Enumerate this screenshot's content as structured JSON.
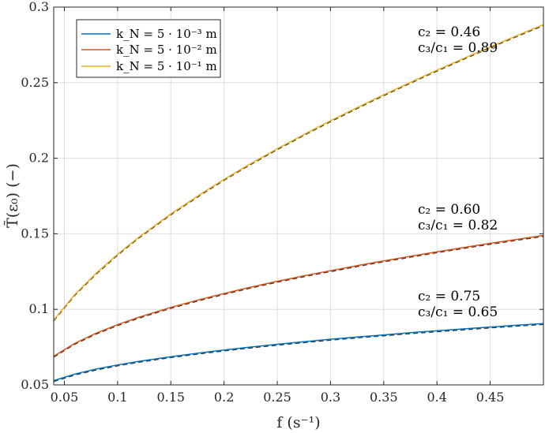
{
  "chart_data": {
    "type": "line",
    "xlabel": "f (s⁻¹)",
    "ylabel": "T̃(ε₀) (−)",
    "xlim": [
      0.04,
      0.5
    ],
    "ylim": [
      0.05,
      0.3
    ],
    "xticks": [
      0.05,
      0.1,
      0.15,
      0.2,
      0.25,
      0.3,
      0.35,
      0.4,
      0.45
    ],
    "xtick_labels": [
      "0.05",
      "0.1",
      "0.15",
      "0.2",
      "0.25",
      "0.3",
      "0.35",
      "0.4",
      "0.45"
    ],
    "yticks": [
      0.05,
      0.1,
      0.15,
      0.2,
      0.25,
      0.3
    ],
    "ytick_labels": [
      "0.05",
      "0.1",
      "0.15",
      "0.2",
      "0.25",
      "0.3"
    ],
    "grid": true,
    "legend_position": "top-left",
    "x": [
      0.04,
      0.06,
      0.08,
      0.1,
      0.12,
      0.15,
      0.18,
      0.2,
      0.22,
      0.25,
      0.28,
      0.3,
      0.33,
      0.35,
      0.38,
      0.4,
      0.43,
      0.45,
      0.48,
      0.5
    ],
    "series": [
      {
        "name": "k_N = 5 · 10⁻³ m",
        "color": "#0072BD",
        "values": [
          0.0528,
          0.0572,
          0.0605,
          0.0632,
          0.0656,
          0.0687,
          0.0714,
          0.0731,
          0.0747,
          0.0769,
          0.0789,
          0.0802,
          0.082,
          0.0831,
          0.0848,
          0.0858,
          0.0873,
          0.0883,
          0.0897,
          0.0906
        ],
        "dashed": true,
        "annotation": {
          "c2": "c₂ = 0.75",
          "c3c1": "c₃/c₁ = 0.65"
        }
      },
      {
        "name": "k_N = 5 · 10⁻² m",
        "color": "#D95319",
        "values": [
          0.069,
          0.0776,
          0.0843,
          0.0899,
          0.0948,
          0.1013,
          0.107,
          0.1105,
          0.1139,
          0.1186,
          0.1229,
          0.1256,
          0.1296,
          0.1321,
          0.1357,
          0.1381,
          0.1415,
          0.1437,
          0.1468,
          0.1489
        ],
        "dashed": true,
        "annotation": {
          "c2": "c₂ = 0.60",
          "c3c1": "c₃/c₁ = 0.82"
        }
      },
      {
        "name": "k_N = 5 · 10⁻¹ m",
        "color": "#EDB120",
        "values": [
          0.093,
          0.11,
          0.124,
          0.1365,
          0.1478,
          0.1632,
          0.1772,
          0.186,
          0.1944,
          0.2063,
          0.2176,
          0.2248,
          0.2353,
          0.242,
          0.2519,
          0.2583,
          0.2676,
          0.2737,
          0.2826,
          0.2884
        ],
        "dashed": true,
        "annotation": {
          "c2": "c₂ = 0.46",
          "c3c1": "c₃/c₁ = 0.89"
        }
      }
    ]
  }
}
